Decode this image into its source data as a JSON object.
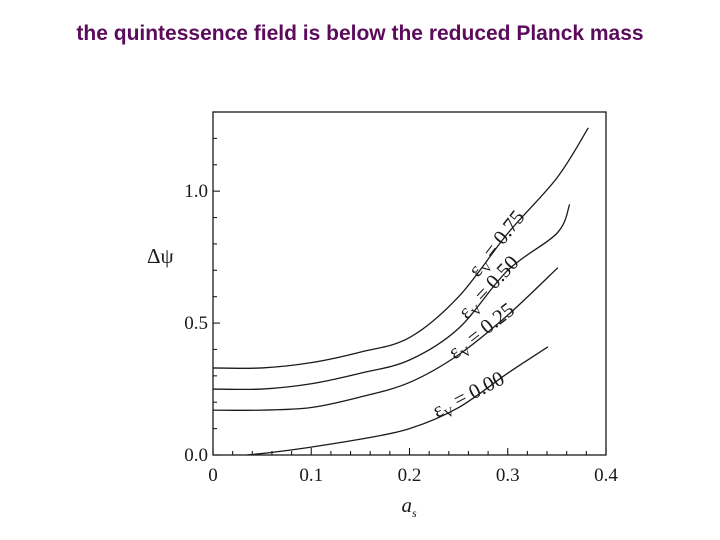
{
  "slide": {
    "title": "the quintessence field is below the reduced Planck mass",
    "title_color": "#5c0a5c"
  },
  "chart_data": {
    "type": "line",
    "title": "",
    "xlabel": "a_s",
    "ylabel": "Δψ",
    "xlim": [
      0,
      0.4
    ],
    "ylim": [
      0,
      1.3
    ],
    "x_ticks": [
      0,
      0.1,
      0.2,
      0.3,
      0.4
    ],
    "x_tick_labels": [
      "0",
      "0.1",
      "0.2",
      "0.3",
      "0.4"
    ],
    "x_minor_step": 0.02,
    "y_ticks": [
      0.0,
      0.5,
      1.0
    ],
    "y_tick_labels": [
      "0.0",
      "0.5",
      "1.0"
    ],
    "y_minor_step": 0.1,
    "grid": false,
    "legend": "inline curve labels",
    "series": [
      {
        "name": "ε_V = 0.75",
        "label_text": "εV = 0.75",
        "x": [
          0,
          0.05,
          0.1,
          0.15,
          0.2,
          0.25,
          0.3,
          0.35,
          0.382
        ],
        "y": [
          0.33,
          0.33,
          0.35,
          0.39,
          0.445,
          0.6,
          0.84,
          1.05,
          1.24
        ]
      },
      {
        "name": "ε_V = 0.50",
        "label_text": "εV = 0.50",
        "x": [
          0,
          0.05,
          0.1,
          0.15,
          0.2,
          0.25,
          0.3,
          0.35,
          0.363
        ],
        "y": [
          0.25,
          0.25,
          0.27,
          0.31,
          0.36,
          0.48,
          0.7,
          0.84,
          0.95
        ]
      },
      {
        "name": "ε_V = 0.25",
        "label_text": "εV = 0.25",
        "x": [
          0,
          0.05,
          0.1,
          0.15,
          0.2,
          0.25,
          0.3,
          0.351
        ],
        "y": [
          0.17,
          0.17,
          0.18,
          0.22,
          0.275,
          0.38,
          0.53,
          0.71
        ]
      },
      {
        "name": "ε_V = 0.00",
        "label_text": "εV = 0.00",
        "x": [
          0.035,
          0.06,
          0.1,
          0.15,
          0.2,
          0.25,
          0.3,
          0.341
        ],
        "y": [
          0.0,
          0.01,
          0.03,
          0.06,
          0.1,
          0.18,
          0.31,
          0.41
        ]
      }
    ]
  }
}
